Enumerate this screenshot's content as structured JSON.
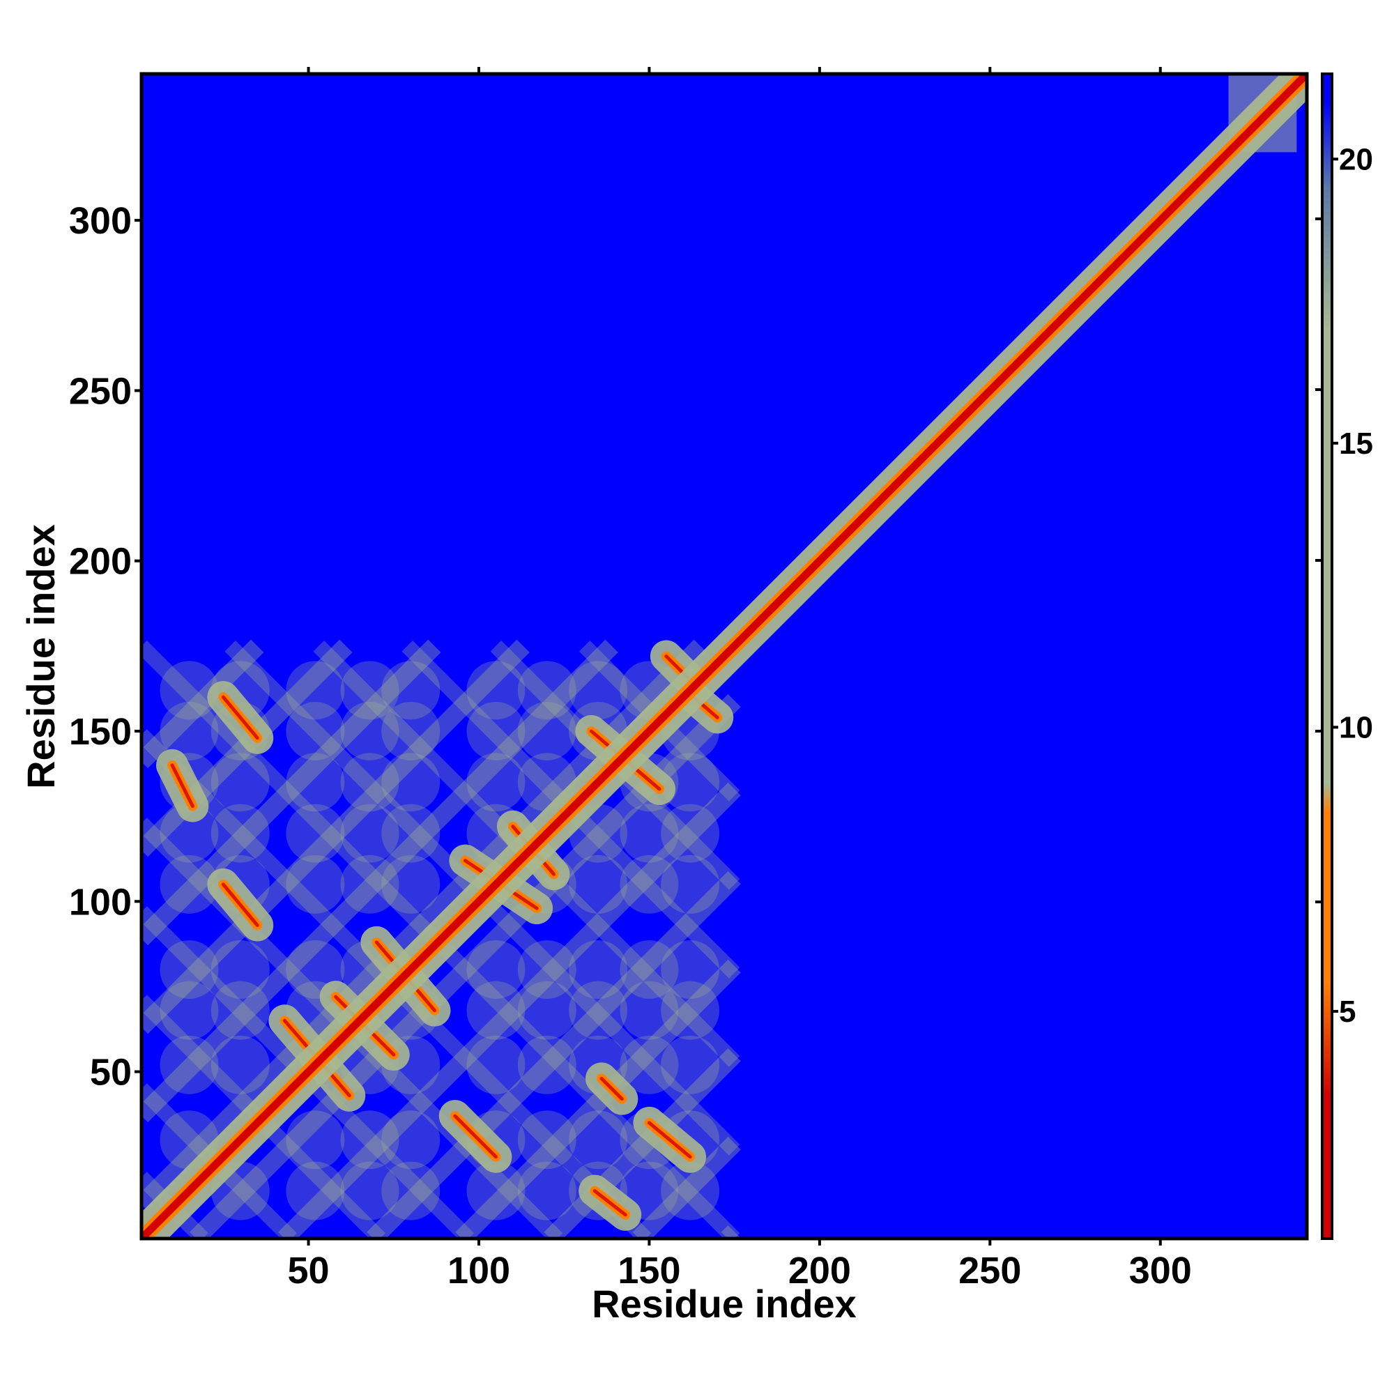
{
  "chart_data": {
    "type": "heatmap",
    "title": "",
    "xlabel": "Residue index",
    "ylabel": "Residue index",
    "xlim": [
      1,
      343
    ],
    "ylim": [
      1,
      343
    ],
    "xticks": [
      50,
      100,
      150,
      200,
      250,
      300
    ],
    "yticks": [
      50,
      100,
      150,
      200,
      250,
      300
    ],
    "x_tick_labels": [
      "50",
      "100",
      "150",
      "200",
      "250",
      "300"
    ],
    "y_tick_labels": [
      "50",
      "100",
      "150",
      "200",
      "250",
      "300"
    ],
    "colorbar": {
      "range": [
        1,
        21.5
      ],
      "ticks": [
        5,
        10,
        15,
        20
      ],
      "tick_labels": [
        "5",
        "10",
        "15",
        "20"
      ],
      "colors": {
        "min": "#d40000",
        "low": "#ff7f00",
        "mid": "#a8b890",
        "high": "#5a7aa8",
        "max": "#0000ff"
      }
    },
    "background_value": 21.5,
    "features": {
      "diagonal_band": {
        "from": 1,
        "to": 343,
        "core_value": 2,
        "halo_width": 5,
        "halo_value": 11
      },
      "structured_region_extent": [
        1,
        175
      ],
      "contact_patches": [
        {
          "x": [
            25,
            35
          ],
          "y": [
            160,
            148
          ],
          "kind": "antiparallel"
        },
        {
          "x": [
            10,
            16
          ],
          "y": [
            140,
            128
          ],
          "kind": "antiparallel"
        },
        {
          "x": [
            25,
            35
          ],
          "y": [
            105,
            93
          ],
          "kind": "antiparallel"
        },
        {
          "x": [
            43,
            62
          ],
          "y": [
            65,
            43
          ],
          "kind": "antiparallel"
        },
        {
          "x": [
            58,
            75
          ],
          "y": [
            72,
            55
          ],
          "kind": "antiparallel"
        },
        {
          "x": [
            70,
            87
          ],
          "y": [
            88,
            68
          ],
          "kind": "antiparallel"
        },
        {
          "x": [
            96,
            117
          ],
          "y": [
            112,
            98
          ],
          "kind": "antiparallel"
        },
        {
          "x": [
            110,
            122
          ],
          "y": [
            122,
            108
          ],
          "kind": "antiparallel"
        },
        {
          "x": [
            93,
            105
          ],
          "y": [
            37,
            25
          ],
          "kind": "antiparallel"
        },
        {
          "x": [
            134,
            143
          ],
          "y": [
            15,
            8
          ],
          "kind": "antiparallel"
        },
        {
          "x": [
            150,
            162
          ],
          "y": [
            35,
            25
          ],
          "kind": "antiparallel"
        },
        {
          "x": [
            133,
            153
          ],
          "y": [
            150,
            133
          ],
          "kind": "antiparallel"
        },
        {
          "x": [
            155,
            162
          ],
          "y": [
            172,
            165
          ],
          "kind": "hook"
        },
        {
          "x": [
            163,
            170
          ],
          "y": [
            160,
            154
          ],
          "kind": "hook"
        },
        {
          "x": [
            136,
            142
          ],
          "y": [
            48,
            42
          ],
          "kind": "antiparallel"
        }
      ],
      "tail_patch": {
        "x": [
          320,
          340
        ],
        "y": [
          320,
          345
        ]
      }
    }
  }
}
